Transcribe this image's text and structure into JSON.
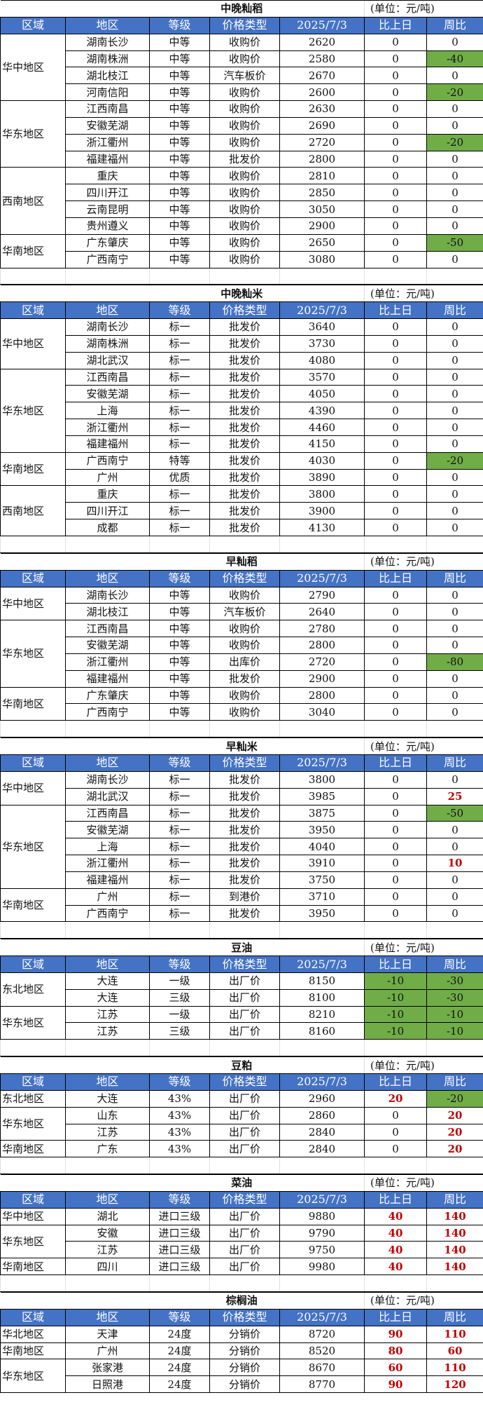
{
  "colors": {
    "header_bg": "#4472C4",
    "decrease_bg": "#70AD47",
    "increase_text": "#C00000"
  },
  "headers": [
    "区域",
    "地区",
    "等级",
    "价格类型",
    "2025/7/3",
    "比上日",
    "周比"
  ],
  "unit": "(单位：元/吨)",
  "sections": [
    {
      "title": "中晚籼稻",
      "groups": [
        {
          "region": "华中地区",
          "rows": [
            {
              "cells": [
                "湖南长沙",
                "中等",
                "收购价",
                "2620",
                "0",
                "0"
              ],
              "week_style": ""
            },
            {
              "cells": [
                "湖南株洲",
                "中等",
                "收购价",
                "2580",
                "0",
                "-40"
              ],
              "week_style": "green"
            },
            {
              "cells": [
                "湖北枝江",
                "中等",
                "汽车板价",
                "2670",
                "0",
                "0"
              ],
              "week_style": ""
            },
            {
              "cells": [
                "河南信阳",
                "中等",
                "收购价",
                "2600",
                "0",
                "-20"
              ],
              "week_style": "green"
            }
          ]
        },
        {
          "region": "华东地区",
          "rows": [
            {
              "cells": [
                "江西南昌",
                "中等",
                "收购价",
                "2630",
                "0",
                "0"
              ]
            },
            {
              "cells": [
                "安徽芜湖",
                "中等",
                "收购价",
                "2690",
                "0",
                "0"
              ]
            },
            {
              "cells": [
                "浙江衢州",
                "中等",
                "收购价",
                "2720",
                "0",
                "-20"
              ],
              "week_style": "green"
            },
            {
              "cells": [
                "福建福州",
                "中等",
                "批发价",
                "2800",
                "0",
                "0"
              ]
            }
          ]
        },
        {
          "region": "西南地区",
          "rows": [
            {
              "cells": [
                "重庆",
                "中等",
                "收购价",
                "2810",
                "0",
                "0"
              ]
            },
            {
              "cells": [
                "四川开江",
                "中等",
                "收购价",
                "2850",
                "0",
                "0"
              ]
            },
            {
              "cells": [
                "云南昆明",
                "中等",
                "收购价",
                "3050",
                "0",
                "0"
              ]
            },
            {
              "cells": [
                "贵州遵义",
                "中等",
                "收购价",
                "2900",
                "0",
                "0"
              ]
            }
          ]
        },
        {
          "region": "华南地区",
          "rows": [
            {
              "cells": [
                "广东肇庆",
                "中等",
                "收购价",
                "2650",
                "0",
                "-50"
              ],
              "week_style": "green"
            },
            {
              "cells": [
                "广西南宁",
                "中等",
                "收购价",
                "3080",
                "0",
                "0"
              ]
            }
          ]
        }
      ]
    },
    {
      "title": "中晚籼米",
      "groups": [
        {
          "region": "华中地区",
          "rows": [
            {
              "cells": [
                "湖南长沙",
                "标一",
                "批发价",
                "3640",
                "0",
                "0"
              ]
            },
            {
              "cells": [
                "湖南株洲",
                "标一",
                "批发价",
                "3730",
                "0",
                "0"
              ]
            },
            {
              "cells": [
                "湖北武汉",
                "标一",
                "批发价",
                "4080",
                "0",
                "0"
              ]
            }
          ]
        },
        {
          "region": "华东地区",
          "rows": [
            {
              "cells": [
                "江西南昌",
                "标一",
                "批发价",
                "3570",
                "0",
                "0"
              ]
            },
            {
              "cells": [
                "安徽芜湖",
                "标一",
                "批发价",
                "4050",
                "0",
                "0"
              ]
            },
            {
              "cells": [
                "上海",
                "标一",
                "批发价",
                "4390",
                "0",
                "0"
              ]
            },
            {
              "cells": [
                "浙江衢州",
                "标一",
                "批发价",
                "4460",
                "0",
                "0"
              ]
            },
            {
              "cells": [
                "福建福州",
                "标一",
                "批发价",
                "4150",
                "0",
                "0"
              ]
            }
          ]
        },
        {
          "region": "华南地区",
          "rows": [
            {
              "cells": [
                "广西南宁",
                "特等",
                "批发价",
                "4030",
                "0",
                "-20"
              ],
              "week_style": "green"
            },
            {
              "cells": [
                "广州",
                "优质",
                "批发价",
                "3890",
                "0",
                "0"
              ]
            }
          ]
        },
        {
          "region": "西南地区",
          "rows": [
            {
              "cells": [
                "重庆",
                "标一",
                "批发价",
                "3800",
                "0",
                "0"
              ]
            },
            {
              "cells": [
                "四川开江",
                "标一",
                "批发价",
                "3900",
                "0",
                "0"
              ]
            },
            {
              "cells": [
                "成都",
                "标一",
                "批发价",
                "4130",
                "0",
                "0"
              ]
            }
          ]
        }
      ]
    },
    {
      "title": "早籼稻",
      "groups": [
        {
          "region": "华中地区",
          "rows": [
            {
              "cells": [
                "湖南长沙",
                "中等",
                "收购价",
                "2790",
                "0",
                "0"
              ]
            },
            {
              "cells": [
                "湖北枝江",
                "中等",
                "汽车板价",
                "2640",
                "0",
                "0"
              ]
            }
          ]
        },
        {
          "region": "华东地区",
          "rows": [
            {
              "cells": [
                "江西南昌",
                "中等",
                "收购价",
                "2780",
                "0",
                "0"
              ]
            },
            {
              "cells": [
                "安徽芜湖",
                "中等",
                "收购价",
                "2800",
                "0",
                "0"
              ]
            },
            {
              "cells": [
                "浙江衢州",
                "中等",
                "出库价",
                "2720",
                "0",
                "-80"
              ],
              "week_style": "green"
            },
            {
              "cells": [
                "福建福州",
                "中等",
                "批发价",
                "2900",
                "0",
                "0"
              ]
            }
          ]
        },
        {
          "region": "华南地区",
          "rows": [
            {
              "cells": [
                "广东肇庆",
                "中等",
                "收购价",
                "2800",
                "0",
                "0"
              ]
            },
            {
              "cells": [
                "广西南宁",
                "中等",
                "收购价",
                "3040",
                "0",
                "0"
              ]
            }
          ]
        }
      ]
    },
    {
      "title": "早籼米",
      "groups": [
        {
          "region": "华中地区",
          "rows": [
            {
              "cells": [
                "湖南长沙",
                "标一",
                "批发价",
                "3800",
                "0",
                "0"
              ]
            },
            {
              "cells": [
                "湖北武汉",
                "标一",
                "批发价",
                "3985",
                "0",
                "25"
              ],
              "week_style": "red"
            }
          ]
        },
        {
          "region": "华东地区",
          "rows": [
            {
              "cells": [
                "江西南昌",
                "标一",
                "批发价",
                "3875",
                "0",
                "-50"
              ],
              "week_style": "green"
            },
            {
              "cells": [
                "安徽芜湖",
                "标一",
                "批发价",
                "3950",
                "0",
                "0"
              ]
            },
            {
              "cells": [
                "上海",
                "标一",
                "批发价",
                "4040",
                "0",
                "0"
              ]
            },
            {
              "cells": [
                "浙江衢州",
                "标一",
                "批发价",
                "3910",
                "0",
                "10"
              ],
              "week_style": "red"
            },
            {
              "cells": [
                "福建福州",
                "标一",
                "批发价",
                "3750",
                "0",
                "0"
              ]
            }
          ]
        },
        {
          "region": "华南地区",
          "rows": [
            {
              "cells": [
                "广州",
                "标一",
                "到港价",
                "3710",
                "0",
                "0"
              ]
            },
            {
              "cells": [
                "广西南宁",
                "标一",
                "批发价",
                "3950",
                "0",
                "0"
              ]
            }
          ]
        }
      ]
    },
    {
      "title": "豆油",
      "groups": [
        {
          "region": "东北地区",
          "rows": [
            {
              "cells": [
                "大连",
                "一级",
                "出厂价",
                "8150",
                "-10",
                "-30"
              ],
              "day_style": "green",
              "week_style": "green"
            },
            {
              "cells": [
                "大连",
                "三级",
                "出厂价",
                "8100",
                "-10",
                "-30"
              ],
              "day_style": "green",
              "week_style": "green"
            }
          ]
        },
        {
          "region": "华东地区",
          "rows": [
            {
              "cells": [
                "江苏",
                "一级",
                "出厂价",
                "8210",
                "-10",
                "-10"
              ],
              "day_style": "green",
              "week_style": "green"
            },
            {
              "cells": [
                "江苏",
                "三级",
                "出厂价",
                "8160",
                "-10",
                "-10"
              ],
              "day_style": "green",
              "week_style": "green"
            }
          ]
        }
      ]
    },
    {
      "title": "豆粕",
      "groups": [
        {
          "region": "东北地区",
          "rows": [
            {
              "cells": [
                "大连",
                "43%",
                "出厂价",
                "2960",
                "20",
                "-20"
              ],
              "day_style": "red",
              "week_style": "green"
            }
          ]
        },
        {
          "region": "华东地区",
          "rows": [
            {
              "cells": [
                "山东",
                "43%",
                "出厂价",
                "2860",
                "0",
                "20"
              ],
              "week_style": "red"
            },
            {
              "cells": [
                "江苏",
                "43%",
                "出厂价",
                "2840",
                "0",
                "20"
              ],
              "week_style": "red"
            }
          ]
        },
        {
          "region": "华南地区",
          "rows": [
            {
              "cells": [
                "广东",
                "43%",
                "出厂价",
                "2840",
                "0",
                "20"
              ],
              "week_style": "red"
            }
          ]
        }
      ]
    },
    {
      "title": "菜油",
      "groups": [
        {
          "region": "华中地区",
          "rows": [
            {
              "cells": [
                "湖北",
                "进口三级",
                "出厂价",
                "9880",
                "40",
                "140"
              ],
              "day_style": "red",
              "week_style": "red"
            }
          ]
        },
        {
          "region": "华东地区",
          "rows": [
            {
              "cells": [
                "安徽",
                "进口三级",
                "出厂价",
                "9790",
                "40",
                "140"
              ],
              "day_style": "red",
              "week_style": "red"
            },
            {
              "cells": [
                "江苏",
                "进口三级",
                "出厂价",
                "9750",
                "40",
                "140"
              ],
              "day_style": "red",
              "week_style": "red"
            }
          ]
        },
        {
          "region": "华南地区",
          "rows": [
            {
              "cells": [
                "四川",
                "进口三级",
                "出厂价",
                "9980",
                "40",
                "140"
              ],
              "day_style": "red",
              "week_style": "red"
            }
          ]
        }
      ]
    },
    {
      "title": "棕榈油",
      "groups": [
        {
          "region": "华北地区",
          "rows": [
            {
              "cells": [
                "天津",
                "24度",
                "分销价",
                "8720",
                "90",
                "110"
              ],
              "day_style": "red",
              "week_style": "red"
            }
          ]
        },
        {
          "region": "华南地区",
          "rows": [
            {
              "cells": [
                "广州",
                "24度",
                "分销价",
                "8520",
                "80",
                "60"
              ],
              "day_style": "red",
              "week_style": "red"
            }
          ]
        },
        {
          "region": "华东地区",
          "rows": [
            {
              "cells": [
                "张家港",
                "24度",
                "分销价",
                "8670",
                "60",
                "110"
              ],
              "day_style": "red",
              "week_style": "red"
            },
            {
              "cells": [
                "日照港",
                "24度",
                "分销价",
                "8770",
                "90",
                "120"
              ],
              "day_style": "red",
              "week_style": "red"
            }
          ]
        }
      ]
    }
  ]
}
